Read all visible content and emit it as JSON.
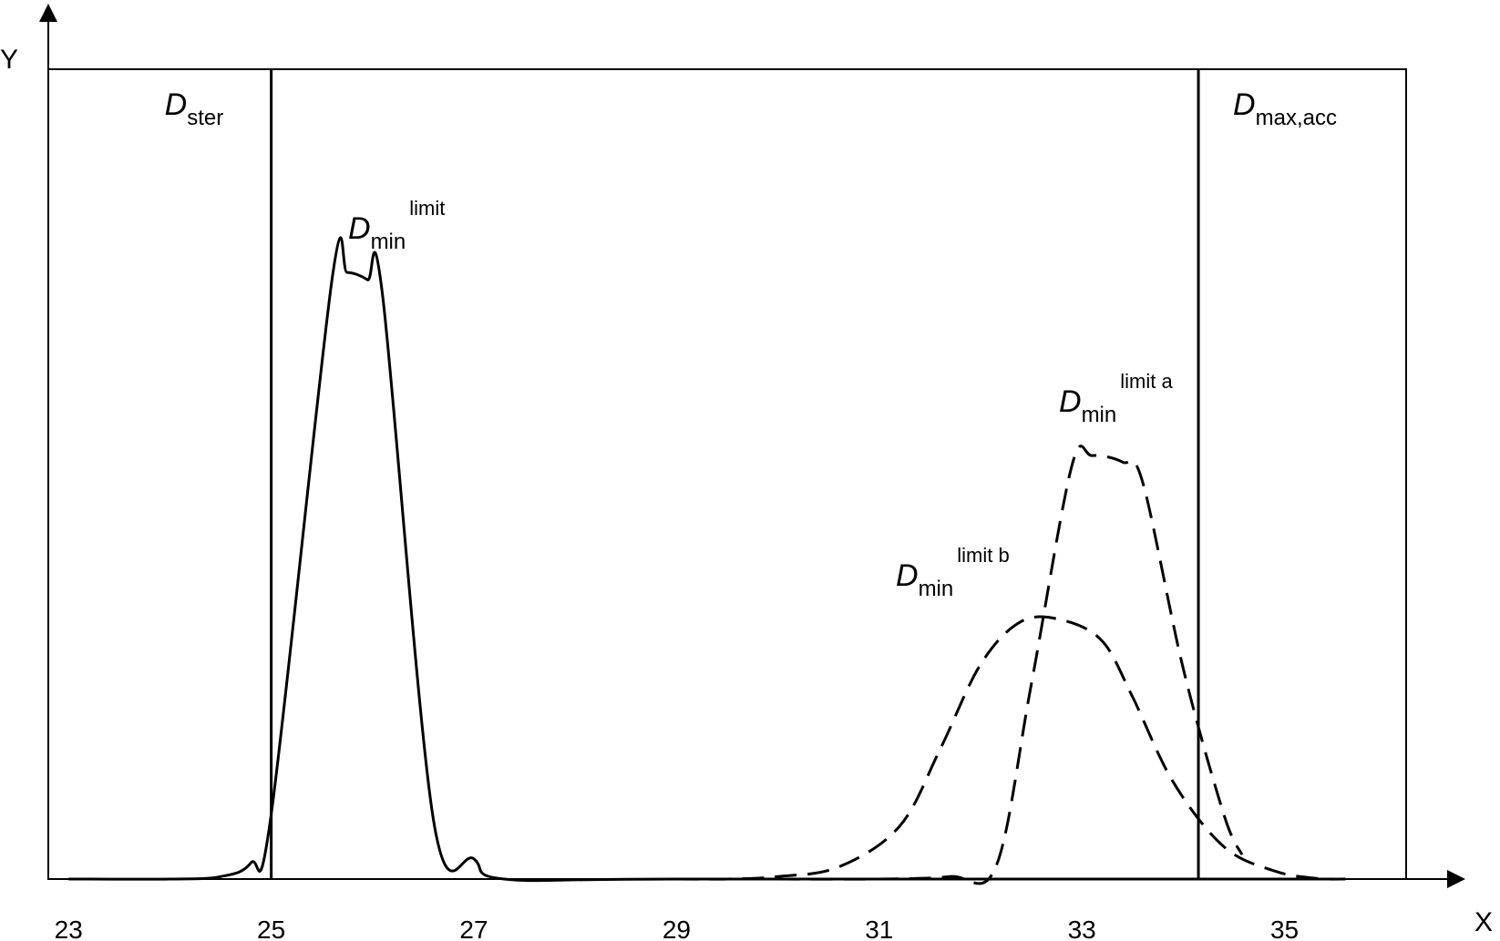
{
  "chart_data": {
    "type": "line",
    "xlabel": "X",
    "ylabel": "Y",
    "xlim": [
      22.8,
      36.2
    ],
    "ylim": [
      0,
      1.0
    ],
    "x_ticks": [
      "23",
      "25",
      "27",
      "29",
      "31",
      "33",
      "35"
    ],
    "grid": false,
    "frame": true,
    "vertical_lines": [
      {
        "x": 25.0,
        "label": "D",
        "label_sub": "ster",
        "placement": "left"
      },
      {
        "x": 34.15,
        "label": "D",
        "label_sub": "max,acc",
        "placement": "right"
      }
    ],
    "series": [
      {
        "label": "D",
        "label_sub": "min",
        "label_sup": "limit",
        "style": "solid",
        "x": [
          23.0,
          24.0,
          24.5,
          24.8,
          25.0,
          25.6,
          25.75,
          25.95,
          26.1,
          26.6,
          27.0,
          27.3,
          29.0,
          35.5
        ],
        "y": [
          0.0,
          0.0,
          0.003,
          0.02,
          0.08,
          0.74,
          0.749,
          0.74,
          0.72,
          0.074,
          0.025,
          0.0,
          0.0,
          0.0
        ]
      },
      {
        "label": "D",
        "label_sub": "min",
        "label_sup": "limit a",
        "style": "dashed",
        "x": [
          30.0,
          31.0,
          31.7,
          32.15,
          32.5,
          32.9,
          33.1,
          33.4,
          33.6,
          34.0,
          34.4,
          34.58
        ],
        "y": [
          0.0,
          0.0,
          0.003,
          0.015,
          0.24,
          0.51,
          0.523,
          0.515,
          0.49,
          0.26,
          0.08,
          0.03
        ]
      },
      {
        "label": "D",
        "label_sub": "min",
        "label_sup": "limit b",
        "style": "dashed",
        "x": [
          29.0,
          29.5,
          30.0,
          30.6,
          31.2,
          31.6,
          32.0,
          32.4,
          32.8,
          33.2,
          33.5,
          33.9,
          34.4,
          34.9,
          35.3,
          35.6
        ],
        "y": [
          0.0,
          0.0,
          0.003,
          0.015,
          0.065,
          0.16,
          0.265,
          0.318,
          0.32,
          0.294,
          0.225,
          0.12,
          0.04,
          0.01,
          0.001,
          0.0
        ]
      }
    ]
  }
}
